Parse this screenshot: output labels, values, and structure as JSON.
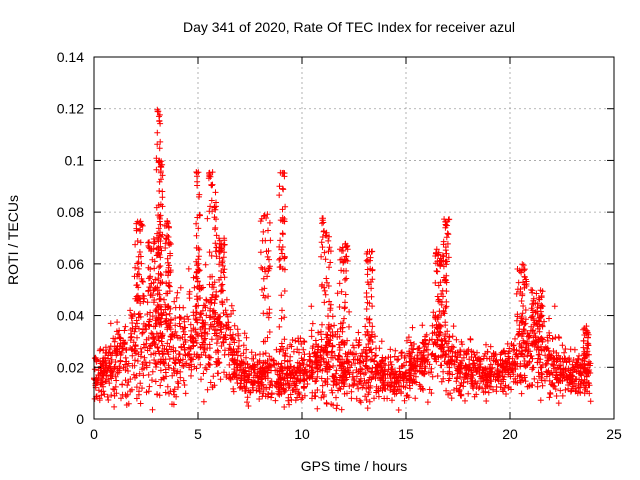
{
  "chart_data": {
    "type": "scatter",
    "title": "Day 341 of 2020, Rate Of TEC Index for receiver azul",
    "xlabel": "GPS time / hours",
    "ylabel": "ROTI / TECUs",
    "xlim": [
      0,
      25
    ],
    "ylim": [
      0,
      0.14
    ],
    "xticks": [
      0,
      5,
      10,
      15,
      20,
      25
    ],
    "xtick_labels": [
      "0",
      "5",
      "10",
      "15",
      "20",
      "25"
    ],
    "yticks": [
      0,
      0.02,
      0.04,
      0.06,
      0.08,
      0.1,
      0.12,
      0.14
    ],
    "ytick_labels": [
      "0",
      "0.02",
      "0.04",
      "0.06",
      "0.08",
      "0.1",
      "0.12",
      "0.14"
    ],
    "grid": true,
    "marker": "+",
    "color": "#ff0000",
    "x_range": [
      0,
      23.9
    ],
    "profile": [
      [
        0.0,
        0.016,
        0.004
      ],
      [
        0.5,
        0.018,
        0.005
      ],
      [
        1.0,
        0.02,
        0.006
      ],
      [
        1.5,
        0.022,
        0.008
      ],
      [
        2.0,
        0.026,
        0.012
      ],
      [
        2.5,
        0.028,
        0.012
      ],
      [
        3.0,
        0.03,
        0.014
      ],
      [
        3.5,
        0.03,
        0.013
      ],
      [
        4.0,
        0.028,
        0.011
      ],
      [
        4.5,
        0.027,
        0.009
      ],
      [
        5.0,
        0.03,
        0.009
      ],
      [
        5.5,
        0.034,
        0.011
      ],
      [
        6.0,
        0.036,
        0.011
      ],
      [
        6.5,
        0.03,
        0.008
      ],
      [
        7.0,
        0.02,
        0.005
      ],
      [
        7.5,
        0.016,
        0.004
      ],
      [
        8.0,
        0.015,
        0.004
      ],
      [
        8.5,
        0.017,
        0.005
      ],
      [
        9.0,
        0.017,
        0.005
      ],
      [
        9.5,
        0.017,
        0.005
      ],
      [
        10.0,
        0.018,
        0.006
      ],
      [
        10.5,
        0.02,
        0.007
      ],
      [
        11.0,
        0.022,
        0.008
      ],
      [
        11.5,
        0.022,
        0.008
      ],
      [
        12.0,
        0.02,
        0.007
      ],
      [
        12.5,
        0.02,
        0.006
      ],
      [
        13.0,
        0.02,
        0.006
      ],
      [
        13.5,
        0.018,
        0.006
      ],
      [
        14.0,
        0.016,
        0.004
      ],
      [
        14.5,
        0.016,
        0.004
      ],
      [
        15.0,
        0.018,
        0.005
      ],
      [
        15.5,
        0.021,
        0.006
      ],
      [
        16.0,
        0.026,
        0.007
      ],
      [
        16.5,
        0.03,
        0.008
      ],
      [
        17.0,
        0.026,
        0.008
      ],
      [
        17.5,
        0.02,
        0.006
      ],
      [
        18.0,
        0.018,
        0.005
      ],
      [
        18.5,
        0.018,
        0.004
      ],
      [
        19.0,
        0.017,
        0.004
      ],
      [
        19.5,
        0.018,
        0.004
      ],
      [
        20.0,
        0.019,
        0.005
      ],
      [
        20.5,
        0.024,
        0.007
      ],
      [
        21.0,
        0.028,
        0.008
      ],
      [
        21.5,
        0.026,
        0.008
      ],
      [
        22.0,
        0.02,
        0.006
      ],
      [
        22.5,
        0.018,
        0.005
      ],
      [
        23.0,
        0.017,
        0.004
      ],
      [
        23.5,
        0.017,
        0.004
      ],
      [
        23.9,
        0.017,
        0.004
      ]
    ],
    "spikes": [
      {
        "x": [
          1.9,
          2.4
        ],
        "y_max": 0.078
      },
      {
        "x": [
          2.6,
          3.1
        ],
        "y_max": 0.07
      },
      {
        "x": [
          3.0,
          3.2
        ],
        "y_max": 0.12
      },
      {
        "x": [
          3.1,
          3.3
        ],
        "y_max": 0.1
      },
      {
        "x": [
          3.4,
          3.7
        ],
        "y_max": 0.077
      },
      {
        "x": [
          4.9,
          5.1
        ],
        "y_max": 0.096
      },
      {
        "x": [
          5.5,
          5.9
        ],
        "y_max": 0.096
      },
      {
        "x": [
          6.0,
          6.3
        ],
        "y_max": 0.07
      },
      {
        "x": [
          8.0,
          8.5
        ],
        "y_max": 0.08
      },
      {
        "x": [
          8.9,
          9.2
        ],
        "y_max": 0.096
      },
      {
        "x": [
          10.9,
          11.4
        ],
        "y_max": 0.078
      },
      {
        "x": [
          11.8,
          12.2
        ],
        "y_max": 0.068
      },
      {
        "x": [
          13.1,
          13.4
        ],
        "y_max": 0.065
      },
      {
        "x": [
          16.4,
          16.8
        ],
        "y_max": 0.066
      },
      {
        "x": [
          16.8,
          17.1
        ],
        "y_max": 0.078
      },
      {
        "x": [
          20.3,
          20.8
        ],
        "y_max": 0.06
      },
      {
        "x": [
          21.0,
          21.6
        ],
        "y_max": 0.05
      },
      {
        "x": [
          23.5,
          23.8
        ],
        "y_max": 0.036
      }
    ],
    "point_count": 5200
  }
}
